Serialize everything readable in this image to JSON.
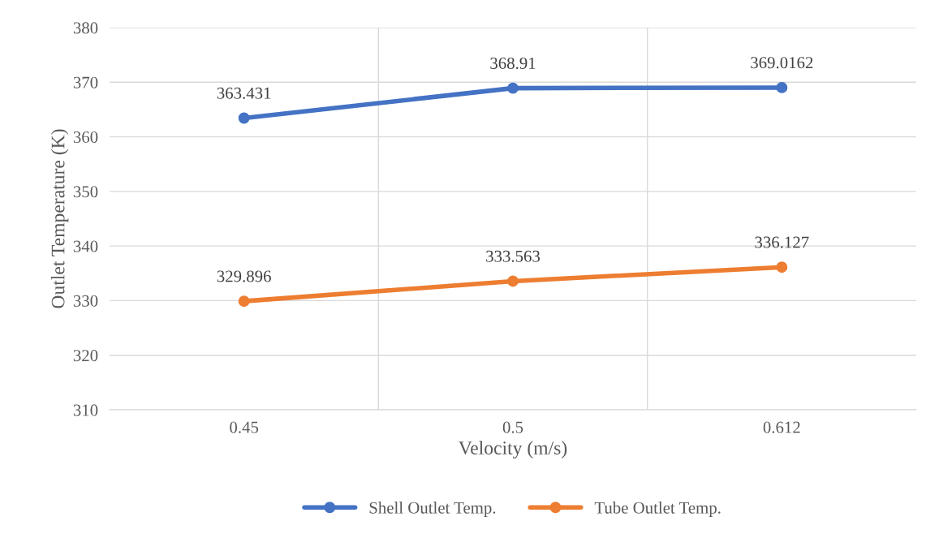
{
  "chart_data": {
    "type": "line",
    "xlabel": "Velocity (m/s)",
    "ylabel": "Outlet Temperature (K)",
    "categories": [
      "0.45",
      "0.5",
      "0.612"
    ],
    "series": [
      {
        "name": "Shell Outlet Temp.",
        "color": "#4472c4",
        "values": [
          363.431,
          368.91,
          369.0162
        ]
      },
      {
        "name": "Tube Outlet Temp.",
        "color": "#ed7d31",
        "values": [
          329.896,
          333.563,
          336.127
        ]
      }
    ],
    "ylim": [
      310,
      380
    ],
    "yticks": [
      310,
      320,
      330,
      340,
      350,
      360,
      370,
      380
    ],
    "grid": true,
    "legend": "bottom",
    "marker": "circle",
    "line_style": "solid",
    "data_labels": true
  }
}
